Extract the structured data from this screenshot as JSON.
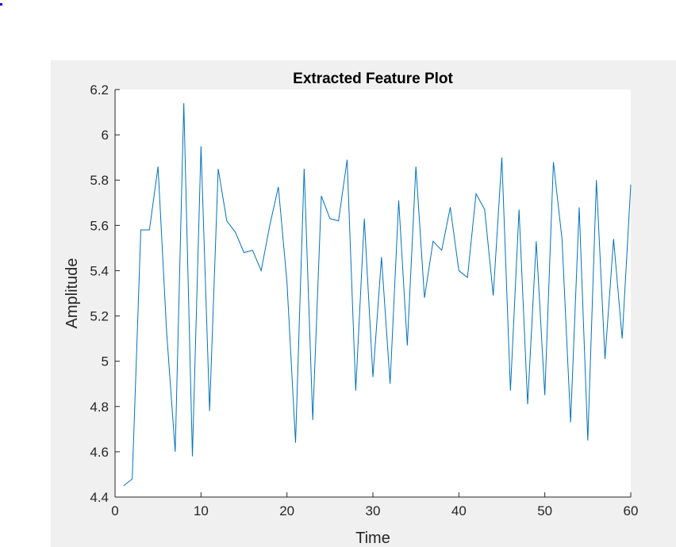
{
  "chart_data": {
    "type": "line",
    "title": "Extracted Feature Plot",
    "xlabel": "Time",
    "ylabel": "Amplitude",
    "xlim": [
      0,
      60
    ],
    "ylim": [
      4.4,
      6.2
    ],
    "xticks": [
      "0",
      "10",
      "20",
      "30",
      "40",
      "50",
      "60"
    ],
    "yticks": [
      "4.4",
      "4.6",
      "4.8",
      "5",
      "5.2",
      "5.4",
      "5.6",
      "5.8",
      "6",
      "6.2"
    ],
    "grid": false,
    "line_color": "#0072BD",
    "x": [
      1,
      2,
      3,
      4,
      5,
      6,
      7,
      8,
      9,
      10,
      11,
      12,
      13,
      14,
      15,
      16,
      17,
      18,
      19,
      20,
      21,
      22,
      23,
      24,
      25,
      26,
      27,
      28,
      29,
      30,
      31,
      32,
      33,
      34,
      35,
      36,
      37,
      38,
      39,
      40,
      41,
      42,
      43,
      44,
      45,
      46,
      47,
      48,
      49,
      50,
      51,
      52,
      53,
      54,
      55,
      56,
      57,
      58,
      59,
      60
    ],
    "y": [
      4.45,
      4.48,
      5.58,
      5.58,
      5.86,
      5.13,
      4.6,
      6.14,
      4.58,
      5.95,
      4.78,
      5.85,
      5.62,
      5.57,
      5.48,
      5.49,
      5.4,
      5.6,
      5.77,
      5.35,
      4.64,
      5.85,
      4.74,
      5.73,
      5.63,
      5.62,
      5.89,
      4.87,
      5.63,
      4.93,
      5.46,
      4.9,
      5.71,
      5.07,
      5.86,
      5.28,
      5.53,
      5.49,
      5.68,
      5.4,
      5.37,
      5.74,
      5.67,
      5.29,
      5.9,
      4.87,
      5.67,
      4.81,
      5.53,
      4.85,
      5.88,
      5.54,
      4.73,
      5.68,
      4.65,
      5.8,
      5.01,
      5.54,
      5.1,
      5.78
    ]
  }
}
